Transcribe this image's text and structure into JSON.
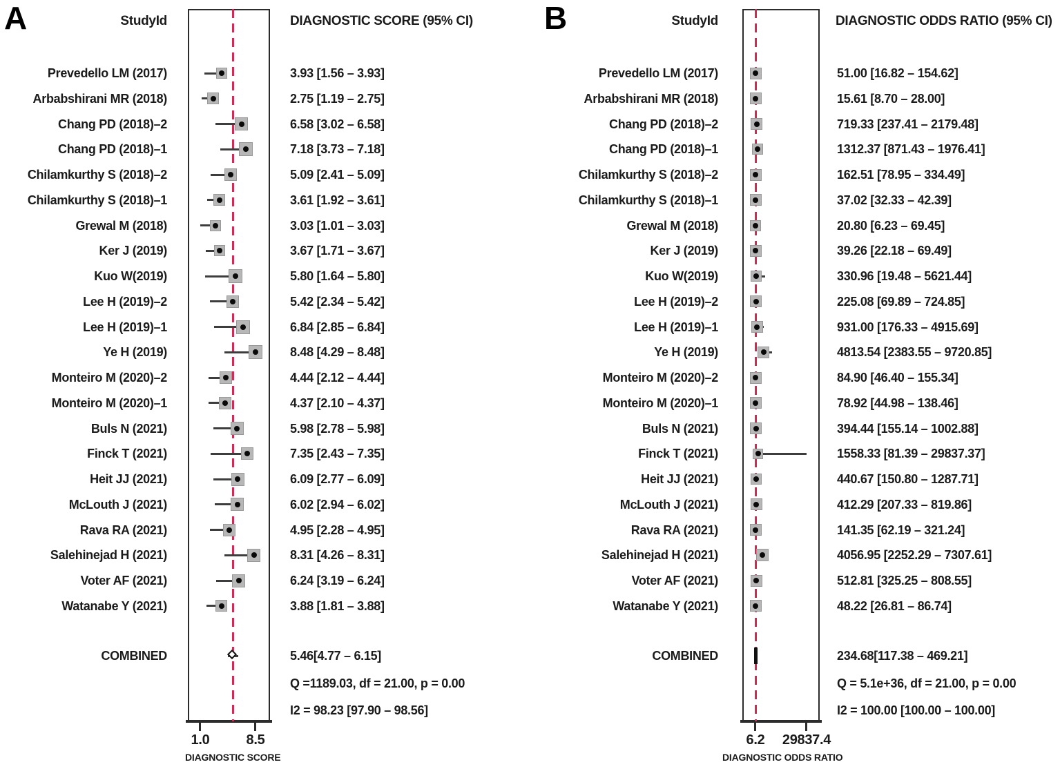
{
  "figure_title": "Forest plots of diagnostic score and diagnostic odds ratio",
  "colors": {
    "dashed_combined_line": "#ce2b55",
    "weight_square": "#b7b7b7",
    "point_dot": "#0a0a0a",
    "text": "#1b1b1b",
    "box_border": "#2b2b2b"
  },
  "chart_data": [
    {
      "type": "scatter",
      "subtype": "forest-plot",
      "panel_label": "A",
      "study_col_header": "StudyId",
      "title": "DIAGNOSTIC SCORE (95% CI)",
      "xlabel": "DIAGNOSTIC SCORE",
      "x_axis_scale": "linear",
      "x_ticks": [
        1.0,
        8.5
      ],
      "x_tick_labels": [
        "1.0",
        "8.5"
      ],
      "studies": [
        {
          "name": "Prevedello LM (2017)",
          "est": 3.93,
          "lo": 1.56,
          "hi": 3.93,
          "ci_text": "3.93 [1.56 – 3.93]",
          "w": 16
        },
        {
          "name": "Arbabshirani MR (2018)",
          "est": 2.75,
          "lo": 1.19,
          "hi": 2.75,
          "ci_text": "2.75 [1.19 – 2.75]",
          "w": 17
        },
        {
          "name": "Chang PD (2018)–2",
          "est": 6.58,
          "lo": 3.02,
          "hi": 6.58,
          "ci_text": "6.58 [3.02 – 6.58]",
          "w": 19
        },
        {
          "name": "Chang PD (2018)–1",
          "est": 7.18,
          "lo": 3.73,
          "hi": 7.18,
          "ci_text": "7.18 [3.73 – 7.18]",
          "w": 20
        },
        {
          "name": "Chilamkurthy S (2018)–2",
          "est": 5.09,
          "lo": 2.41,
          "hi": 5.09,
          "ci_text": "5.09 [2.41 – 5.09]",
          "w": 18
        },
        {
          "name": "Chilamkurthy S (2018)–1",
          "est": 3.61,
          "lo": 1.92,
          "hi": 3.61,
          "ci_text": "3.61 [1.92 – 3.61]",
          "w": 17
        },
        {
          "name": "Grewal M (2018)",
          "est": 3.03,
          "lo": 1.01,
          "hi": 3.03,
          "ci_text": "3.03 [1.01 – 3.03]",
          "w": 16
        },
        {
          "name": "Ker J (2019)",
          "est": 3.67,
          "lo": 1.71,
          "hi": 3.67,
          "ci_text": "3.67 [1.71 – 3.67]",
          "w": 16
        },
        {
          "name": "Kuo W(2019)",
          "est": 5.8,
          "lo": 1.64,
          "hi": 5.8,
          "ci_text": "5.80 [1.64 – 5.80]",
          "w": 20
        },
        {
          "name": "Lee H (2019)–2",
          "est": 5.42,
          "lo": 2.34,
          "hi": 5.42,
          "ci_text": "5.42 [2.34 – 5.42]",
          "w": 18
        },
        {
          "name": "Lee H (2019)–1",
          "est": 6.84,
          "lo": 2.85,
          "hi": 6.84,
          "ci_text": "6.84 [2.85 – 6.84]",
          "w": 20
        },
        {
          "name": "Ye H (2019)",
          "est": 8.48,
          "lo": 4.29,
          "hi": 8.48,
          "ci_text": "8.48 [4.29 – 8.48]",
          "w": 20
        },
        {
          "name": "Monteiro M (2020)–2",
          "est": 4.44,
          "lo": 2.12,
          "hi": 4.44,
          "ci_text": "4.44 [2.12 – 4.44]",
          "w": 18
        },
        {
          "name": "Monteiro M (2020)–1",
          "est": 4.37,
          "lo": 2.1,
          "hi": 4.37,
          "ci_text": "4.37 [2.10 – 4.37]",
          "w": 18
        },
        {
          "name": "Buls N (2021)",
          "est": 5.98,
          "lo": 2.78,
          "hi": 5.98,
          "ci_text": "5.98 [2.78 – 5.98]",
          "w": 19
        },
        {
          "name": "Finck T (2021)",
          "est": 7.35,
          "lo": 2.43,
          "hi": 7.35,
          "ci_text": "7.35 [2.43 – 7.35]",
          "w": 18
        },
        {
          "name": "Heit JJ (2021)",
          "est": 6.09,
          "lo": 2.77,
          "hi": 6.09,
          "ci_text": "6.09 [2.77 – 6.09]",
          "w": 19
        },
        {
          "name": "McLouth  J (2021)",
          "est": 6.02,
          "lo": 2.94,
          "hi": 6.02,
          "ci_text": "6.02 [2.94 – 6.02]",
          "w": 19
        },
        {
          "name": "Rava RA (2021)",
          "est": 4.95,
          "lo": 2.28,
          "hi": 4.95,
          "ci_text": "4.95 [2.28 – 4.95]",
          "w": 18
        },
        {
          "name": "Salehinejad H (2021)",
          "est": 8.31,
          "lo": 4.26,
          "hi": 8.31,
          "ci_text": "8.31 [4.26 – 8.31]",
          "w": 19
        },
        {
          "name": "Voter AF (2021)",
          "est": 6.24,
          "lo": 3.19,
          "hi": 6.24,
          "ci_text": "6.24 [3.19 – 6.24]",
          "w": 19
        },
        {
          "name": "Watanabe Y (2021)",
          "est": 3.88,
          "lo": 1.81,
          "hi": 3.88,
          "ci_text": "3.88 [1.81 – 3.88]",
          "w": 17
        }
      ],
      "combined": {
        "name": "COMBINED",
        "est": 5.46,
        "lo": 4.77,
        "hi": 6.15,
        "ci_text": "5.46[4.77 – 6.15]"
      },
      "het_text": [
        "Q =1189.03, df = 21.00, p =  0.00",
        "I2 = 98.23 [97.90 – 98.56]"
      ]
    },
    {
      "type": "scatter",
      "subtype": "forest-plot",
      "panel_label": "B",
      "study_col_header": "StudyId",
      "title": "DIAGNOSTIC ODDS RATIO (95% CI)",
      "xlabel": "DIAGNOSTIC ODDS RATIO",
      "x_axis_scale": "linear",
      "x_ticks": [
        6.2,
        29837.4
      ],
      "x_tick_labels": [
        "6.2",
        "29837.4"
      ],
      "studies": [
        {
          "name": "Prevedello LM (2017)",
          "est": 51.0,
          "lo": 16.82,
          "hi": 154.62,
          "ci_text": "51.00 [16.82 – 154.62]",
          "w": 17
        },
        {
          "name": "Arbabshirani MR (2018)",
          "est": 15.61,
          "lo": 8.7,
          "hi": 28.0,
          "ci_text": "15.61 [8.70 – 28.00]",
          "w": 17
        },
        {
          "name": "Chang PD (2018)–2",
          "est": 719.33,
          "lo": 237.41,
          "hi": 2179.48,
          "ci_text": "719.33 [237.41 – 2179.48]",
          "w": 17
        },
        {
          "name": "Chang PD (2018)–1",
          "est": 1312.37,
          "lo": 871.43,
          "hi": 1976.41,
          "ci_text": "1312.37 [871.43 – 1976.41]",
          "w": 16
        },
        {
          "name": "Chilamkurthy S (2018)–2",
          "est": 162.51,
          "lo": 78.95,
          "hi": 334.49,
          "ci_text": "162.51 [78.95 – 334.49]",
          "w": 17
        },
        {
          "name": "Chilamkurthy S (2018)–1",
          "est": 37.02,
          "lo": 32.33,
          "hi": 42.39,
          "ci_text": "37.02 [32.33 – 42.39]",
          "w": 17
        },
        {
          "name": "Grewal M (2018)",
          "est": 20.8,
          "lo": 6.23,
          "hi": 69.45,
          "ci_text": "20.80 [6.23 – 69.45]",
          "w": 16
        },
        {
          "name": "Ker J (2019)",
          "est": 39.26,
          "lo": 22.18,
          "hi": 69.49,
          "ci_text": "39.26 [22.18 – 69.49]",
          "w": 17
        },
        {
          "name": "Kuo W(2019)",
          "est": 330.96,
          "lo": 19.48,
          "hi": 5621.44,
          "ci_text": "330.96 [19.48 – 5621.44]",
          "w": 16
        },
        {
          "name": "Lee H (2019)–2",
          "est": 225.08,
          "lo": 69.89,
          "hi": 724.85,
          "ci_text": "225.08 [69.89 – 724.85]",
          "w": 17
        },
        {
          "name": "Lee H (2019)–1",
          "est": 931.0,
          "lo": 176.33,
          "hi": 4915.69,
          "ci_text": "931.00 [176.33 – 4915.69]",
          "w": 17
        },
        {
          "name": "Ye H (2019)",
          "est": 4813.54,
          "lo": 2383.55,
          "hi": 9720.85,
          "ci_text": "4813.54 [2383.55 – 9720.85]",
          "w": 17
        },
        {
          "name": "Monteiro M (2020)–2",
          "est": 84.9,
          "lo": 46.4,
          "hi": 155.34,
          "ci_text": "84.90 [46.40 – 155.34]",
          "w": 17
        },
        {
          "name": "Monteiro M (2020)–1",
          "est": 78.92,
          "lo": 44.98,
          "hi": 138.46,
          "ci_text": "78.92 [44.98 – 138.46]",
          "w": 17
        },
        {
          "name": "Buls N (2021)",
          "est": 394.44,
          "lo": 155.14,
          "hi": 1002.88,
          "ci_text": "394.44 [155.14 – 1002.88]",
          "w": 17
        },
        {
          "name": "Finck T (2021)",
          "est": 1558.33,
          "lo": 81.39,
          "hi": 29837.37,
          "ci_text": "1558.33 [81.39 – 29837.37]",
          "w": 15
        },
        {
          "name": "Heit JJ (2021)",
          "est": 440.67,
          "lo": 150.8,
          "hi": 1287.71,
          "ci_text": "440.67 [150.80 – 1287.71]",
          "w": 16
        },
        {
          "name": "McLouth  J (2021)",
          "est": 412.29,
          "lo": 207.33,
          "hi": 819.86,
          "ci_text": "412.29 [207.33 – 819.86]",
          "w": 17
        },
        {
          "name": "Rava RA (2021)",
          "est": 141.35,
          "lo": 62.19,
          "hi": 321.24,
          "ci_text": "141.35 [62.19 – 321.24]",
          "w": 17
        },
        {
          "name": "Salehinejad H (2021)",
          "est": 4056.95,
          "lo": 2252.29,
          "hi": 7307.61,
          "ci_text": "4056.95 [2252.29 – 7307.61]",
          "w": 18
        },
        {
          "name": "Voter AF (2021)",
          "est": 512.81,
          "lo": 325.25,
          "hi": 808.55,
          "ci_text": "512.81 [325.25 – 808.55]",
          "w": 17
        },
        {
          "name": "Watanabe Y (2021)",
          "est": 48.22,
          "lo": 26.81,
          "hi": 86.74,
          "ci_text": "48.22 [26.81 – 86.74]",
          "w": 17
        }
      ],
      "combined": {
        "name": "COMBINED",
        "est": 234.68,
        "lo": 117.38,
        "hi": 469.21,
        "ci_text": "234.68[117.38 – 469.21]"
      },
      "het_text": [
        "Q = 5.1e+36, df = 21.00, p =  0.00",
        "I2 = 100.00 [100.00 – 100.00]"
      ]
    }
  ]
}
